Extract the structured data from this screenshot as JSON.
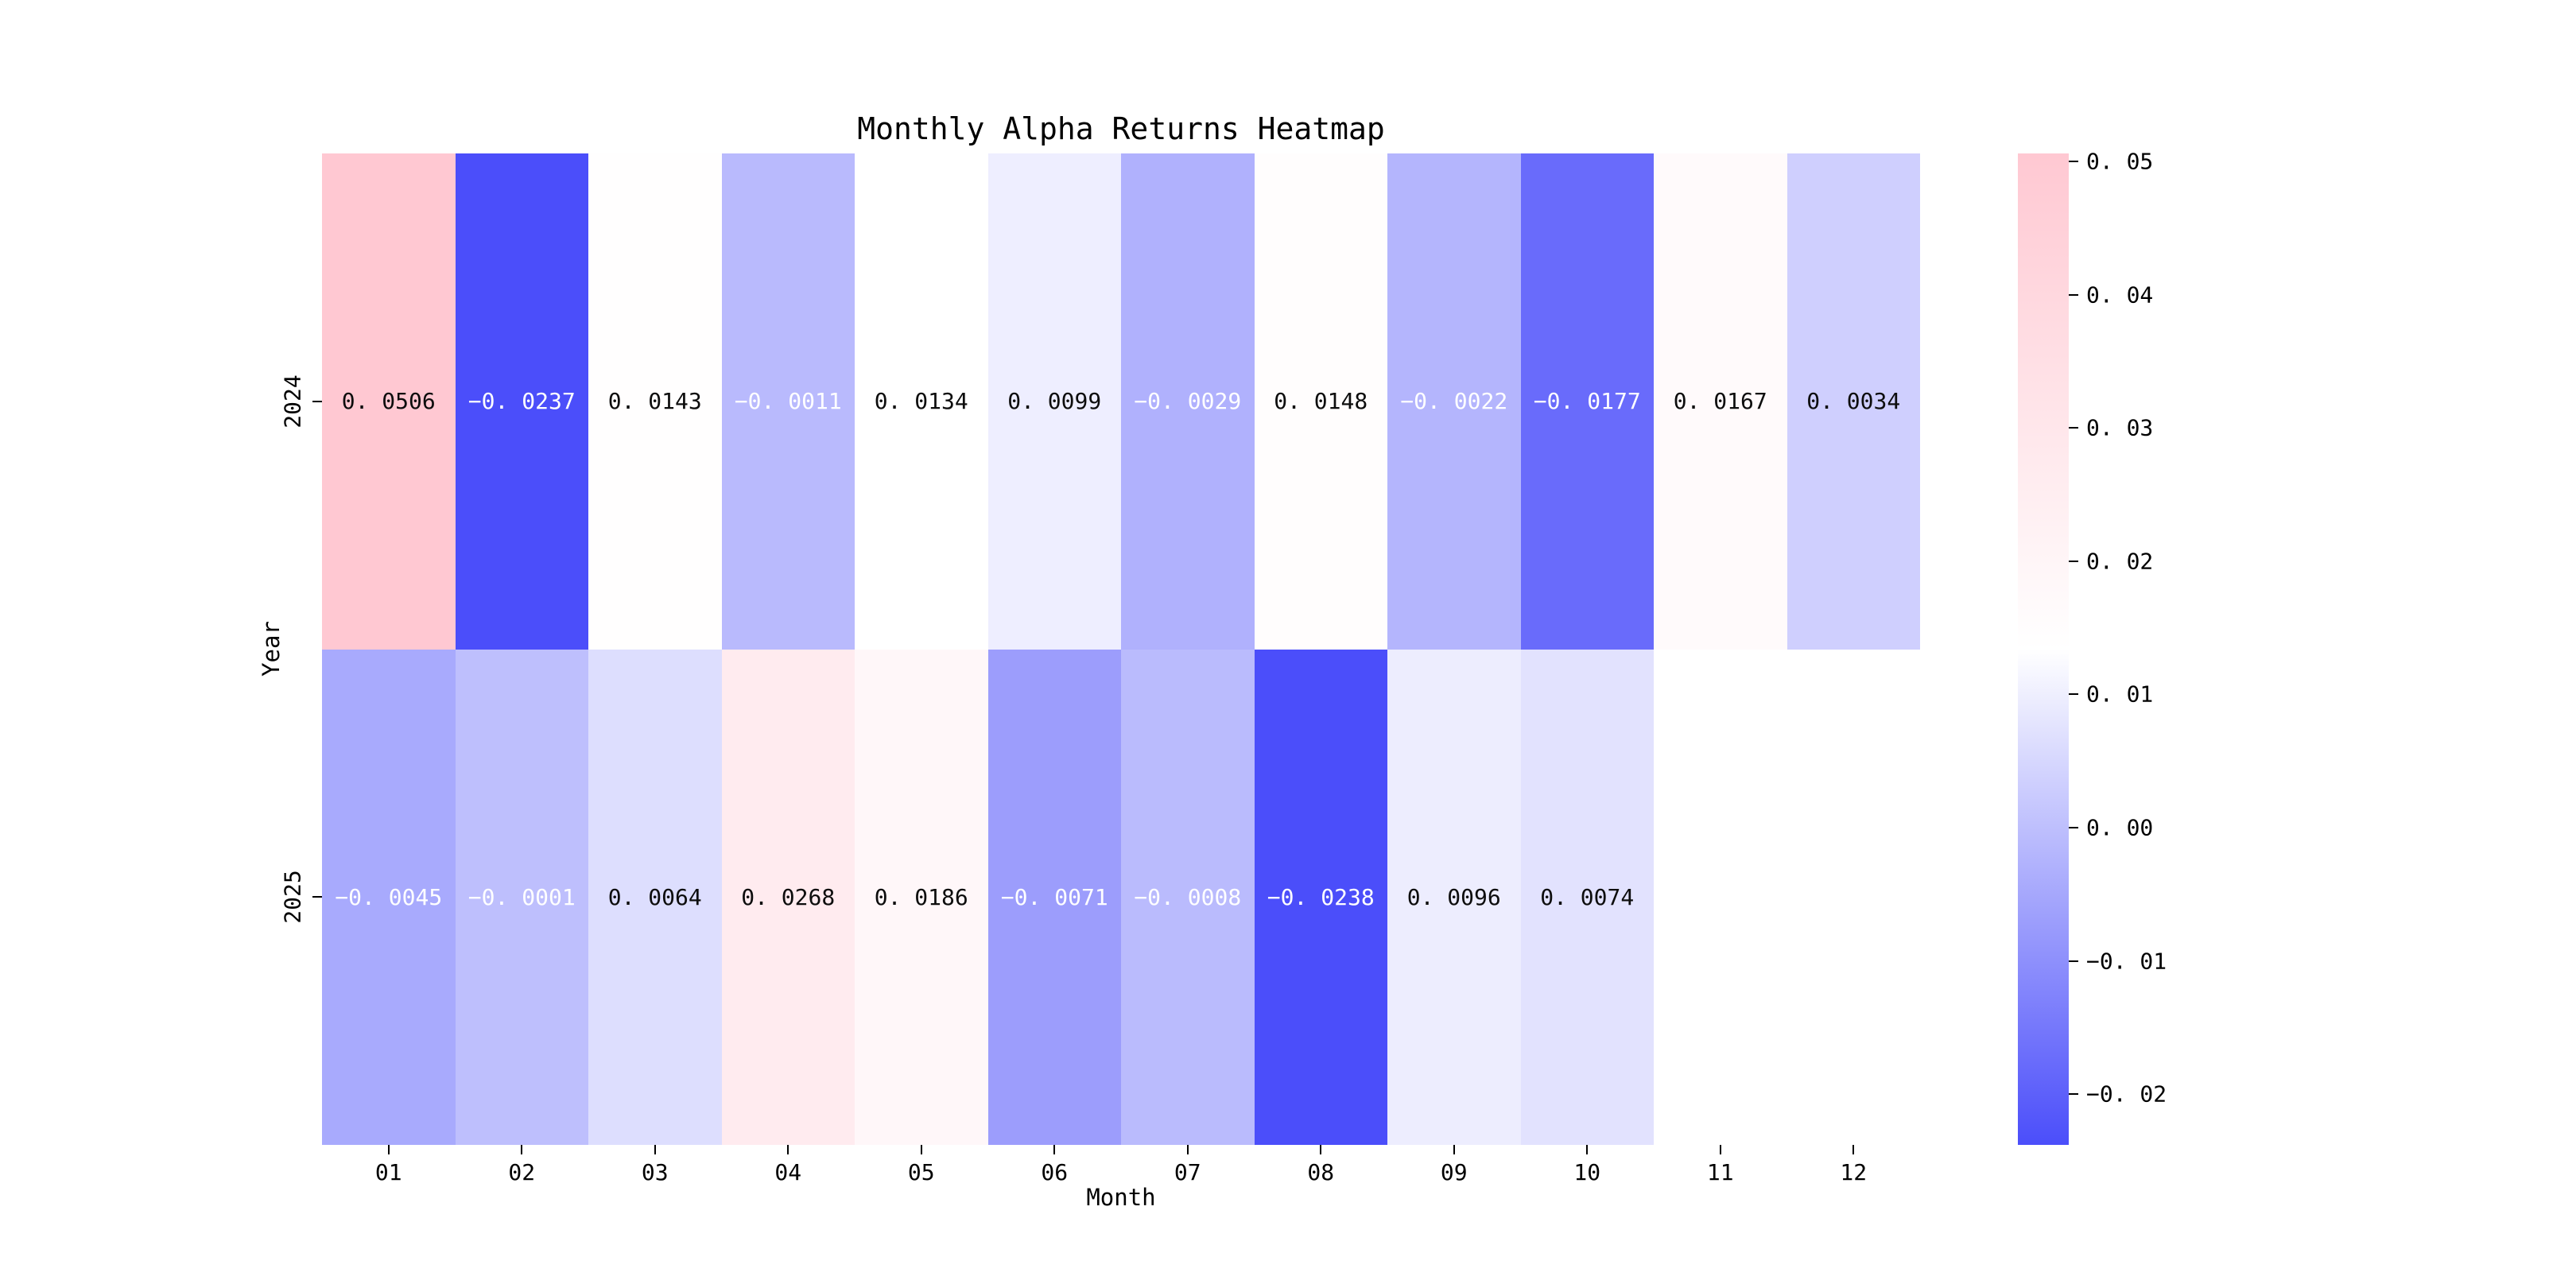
{
  "figure": {
    "background": "#ffffff"
  },
  "chart_data": {
    "type": "heatmap",
    "title": "Monthly Alpha Returns Heatmap",
    "xlabel": "Month",
    "ylabel": "Year",
    "x_categories": [
      "01",
      "02",
      "03",
      "04",
      "05",
      "06",
      "07",
      "08",
      "09",
      "10",
      "11",
      "12"
    ],
    "y_categories": [
      "2024",
      "2025"
    ],
    "series": [
      {
        "name": "2024",
        "values": [
          0.0506,
          -0.0237,
          0.0143,
          -0.0011,
          0.0134,
          0.0099,
          -0.0029,
          0.0148,
          -0.0022,
          -0.0177,
          0.0167,
          0.0034
        ]
      },
      {
        "name": "2025",
        "values": [
          -0.0045,
          -0.0001,
          0.0064,
          0.0268,
          0.0186,
          -0.0071,
          -0.0008,
          -0.0238,
          0.0096,
          0.0074,
          null,
          null
        ]
      }
    ],
    "cell_labels": [
      [
        "0. 0506",
        "−0. 0237",
        "0. 0143",
        "−0. 0011",
        "0. 0134",
        "0. 0099",
        "−0. 0029",
        "0. 0148",
        "−0. 0022",
        "−0. 0177",
        "0. 0167",
        "0. 0034"
      ],
      [
        "−0. 0045",
        "−0. 0001",
        "0. 0064",
        "0. 0268",
        "0. 0186",
        "−0. 0071",
        "−0. 0008",
        "−0. 0238",
        "0. 0096",
        "0. 0074",
        null,
        null
      ]
    ],
    "annotation_text_colors": {
      "negative": "#ffffff",
      "positive": "#0d0d0d"
    },
    "colorscale": {
      "vmin": -0.0238,
      "vmax": 0.0506,
      "mid_value": 0.0134,
      "color_low": "#4b4efa",
      "color_mid": "#ffffff",
      "color_high": "#ffc8d2"
    },
    "colorbar": {
      "ticks": [
        0.05,
        0.04,
        0.03,
        0.02,
        0.01,
        0.0,
        -0.01,
        -0.02
      ],
      "tick_labels": [
        "0. 05",
        "0. 04",
        "0. 03",
        "0. 02",
        "0. 01",
        "0. 00",
        "−0. 01",
        "−0. 02"
      ]
    },
    "grid": false,
    "legend_position": "right-colorbar"
  }
}
